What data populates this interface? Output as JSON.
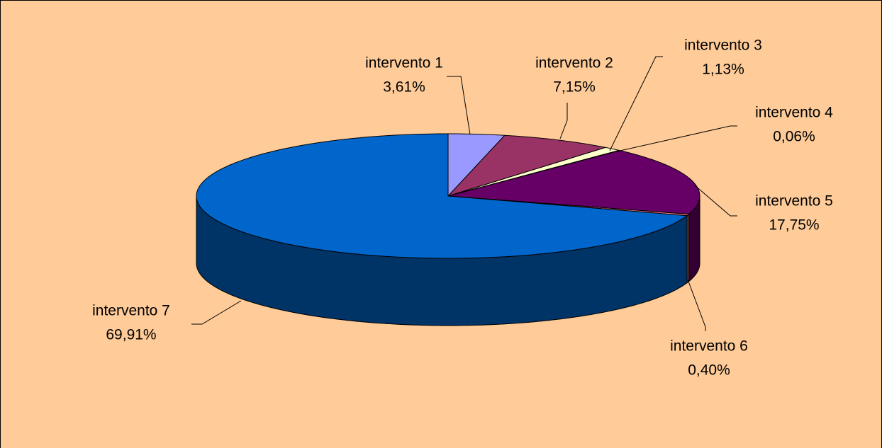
{
  "chart_data": {
    "type": "pie3d",
    "categories": [
      "intervento 1",
      "intervento 2",
      "intervento 3",
      "intervento 4",
      "intervento 5",
      "intervento 6",
      "intervento 7"
    ],
    "values": [
      3.61,
      7.15,
      1.13,
      0.06,
      17.75,
      0.4,
      69.91
    ],
    "value_labels": [
      "3,61%",
      "7,15%",
      "1,13%",
      "0,06%",
      "17,75%",
      "0,40%",
      "69,91%"
    ],
    "colors": [
      "#9999ff",
      "#993366",
      "#ffffcc",
      "#ccffff",
      "#660066",
      "#ff8080",
      "#0066cc"
    ],
    "background": "#ffcc99"
  }
}
